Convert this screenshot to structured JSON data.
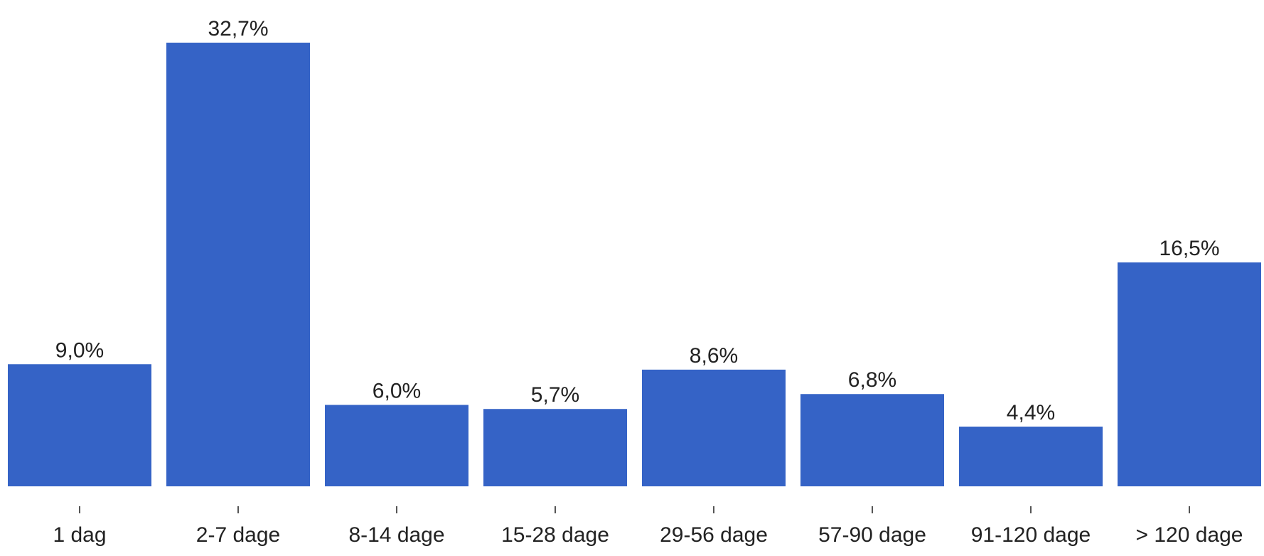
{
  "chart_data": {
    "type": "bar",
    "categories": [
      "1 dag",
      "2-7 dage",
      "8-14 dage",
      "15-28 dage",
      "29-56 dage",
      "57-90 dage",
      "91-120 dage",
      "> 120 dage"
    ],
    "values": [
      9.0,
      32.7,
      6.0,
      5.7,
      8.6,
      6.8,
      4.4,
      16.5
    ],
    "value_labels": [
      "9,0%",
      "32,7%",
      "6,0%",
      "5,7%",
      "8,6%",
      "6,8%",
      "4,4%",
      "16,5%"
    ],
    "color": "#3563c6"
  }
}
